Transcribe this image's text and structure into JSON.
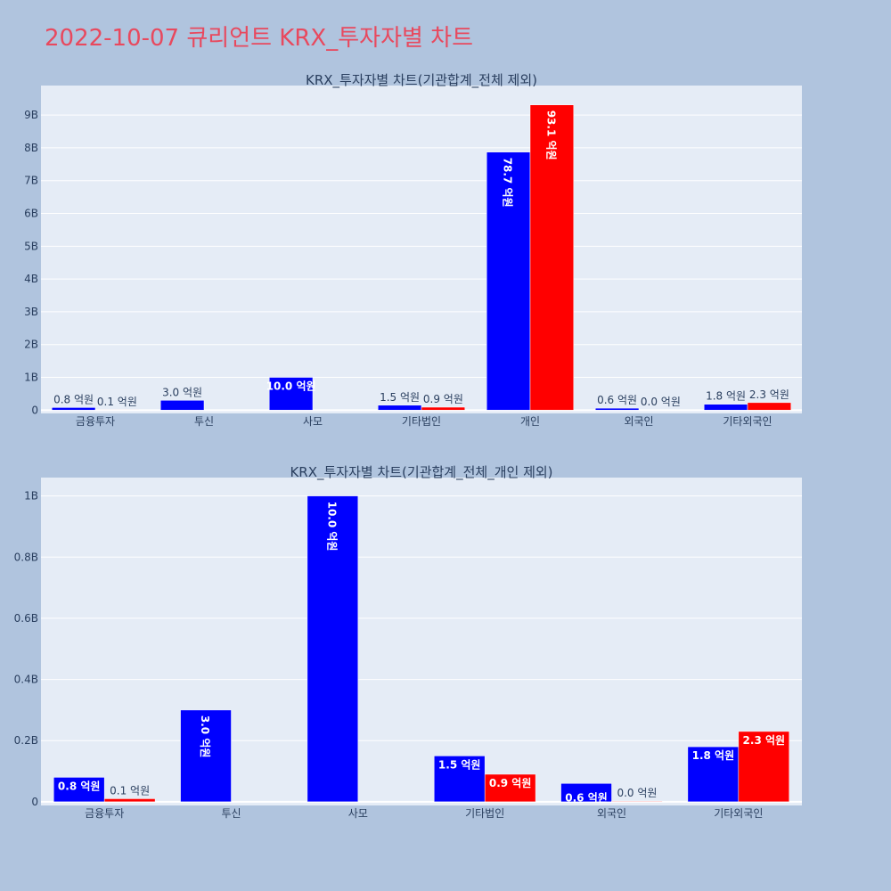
{
  "title": "2022-10-07 큐리언트 KRX_투자자별 차트",
  "colors": {
    "series1": "#0000ff",
    "series2": "#ff0000",
    "plot_bg": "#e5ecf6",
    "page_bg": "#b0c4de",
    "title": "#e8495e"
  },
  "chart_data": [
    {
      "type": "bar",
      "title": "KRX_투자자별 차트(기관합계_전체 제외)",
      "categories": [
        "금융투자",
        "투신",
        "사모",
        "기타법인",
        "개인",
        "외국인",
        "기타외국인"
      ],
      "series": [
        {
          "color": "#0000ff",
          "values": [
            80000000,
            300000000,
            1000000000,
            150000000,
            7870000000,
            60000000,
            180000000
          ],
          "labels": [
            "0.8 억원",
            "3.0 억원",
            "10.0 억원",
            "1.5 억원",
            "78.7 억원",
            "0.6 억원",
            "1.8 억원"
          ]
        },
        {
          "color": "#ff0000",
          "values": [
            10000000,
            null,
            null,
            90000000,
            9310000000,
            2000000,
            230000000
          ],
          "labels": [
            "0.1 억원",
            "",
            "",
            "0.9 억원",
            "93.1 억원",
            "0.0 억원",
            "2.3 억원"
          ]
        }
      ],
      "ylim": [
        -100000000,
        9900000000
      ],
      "yticks": [
        0,
        1000000000,
        2000000000,
        3000000000,
        4000000000,
        5000000000,
        6000000000,
        7000000000,
        8000000000,
        9000000000
      ],
      "yticklabels": [
        "0",
        "1B",
        "2B",
        "3B",
        "4B",
        "5B",
        "6B",
        "7B",
        "8B",
        "9B"
      ],
      "grid": true
    },
    {
      "type": "bar",
      "title": "KRX_투자자별 차트(기관합계_전체_개인 제외)",
      "categories": [
        "금융투자",
        "투신",
        "사모",
        "기타법인",
        "외국인",
        "기타외국인"
      ],
      "series": [
        {
          "color": "#0000ff",
          "values": [
            80000000,
            300000000,
            1000000000,
            150000000,
            60000000,
            180000000
          ],
          "labels": [
            "0.8 억원",
            "3.0 억원",
            "10.0 억원",
            "1.5 억원",
            "0.6 억원",
            "1.8 억원"
          ]
        },
        {
          "color": "#ff0000",
          "values": [
            10000000,
            null,
            null,
            90000000,
            2000000,
            230000000
          ],
          "labels": [
            "0.1 억원",
            "",
            "",
            "0.9 억원",
            "0.0 억원",
            "2.3 억원"
          ]
        }
      ],
      "ylim": [
        -12000000,
        1060000000
      ],
      "yticks": [
        0,
        200000000,
        400000000,
        600000000,
        800000000,
        1000000000
      ],
      "yticklabels": [
        "0",
        "0.2B",
        "0.4B",
        "0.6B",
        "0.8B",
        "1B"
      ],
      "grid": true
    }
  ]
}
